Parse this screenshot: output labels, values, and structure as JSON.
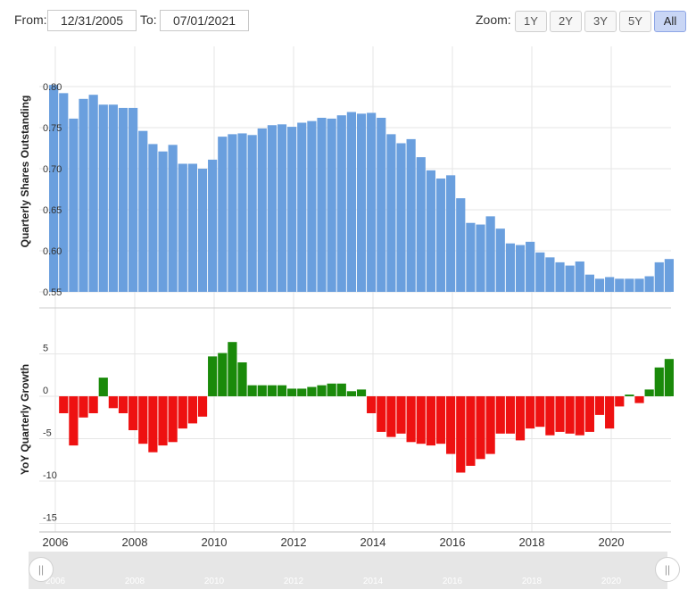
{
  "toolbar": {
    "from_label": "From:",
    "from_value": "12/31/2005",
    "to_label": "To:",
    "to_value": "07/01/2021",
    "zoom_label": "Zoom:",
    "zoom_options": [
      "1Y",
      "2Y",
      "3Y",
      "5Y",
      "All"
    ],
    "zoom_selected": "All"
  },
  "navigator": {
    "left_handle": "||",
    "right_handle": "||",
    "year_labels": [
      "2006",
      "2008",
      "2010",
      "2012",
      "2014",
      "2016",
      "2018",
      "2020"
    ]
  },
  "colors": {
    "shares_bar": "#6a9fde",
    "growth_positive": "#1a8a0a",
    "growth_negative": "#ee1111",
    "grid": "#e6e6e6"
  },
  "chart_data": [
    {
      "type": "bar",
      "ylabel": "Quarterly Shares Outstanding",
      "ylim": [
        0.55,
        0.8
      ],
      "yticks": [
        "0.80",
        "0.75",
        "0.70",
        "0.65",
        "0.60",
        "0.55"
      ],
      "ytick_values": [
        0.8,
        0.75,
        0.7,
        0.65,
        0.6,
        0.55
      ],
      "xticks": [
        "2006",
        "2008",
        "2010",
        "2012",
        "2014",
        "2016",
        "2018",
        "2020"
      ],
      "x_start": "2005-12-31",
      "x_end": "2021-07-01",
      "grid": true,
      "x": [
        "2005-12",
        "2006-03",
        "2006-06",
        "2006-09",
        "2006-12",
        "2007-03",
        "2007-06",
        "2007-09",
        "2007-12",
        "2008-03",
        "2008-06",
        "2008-09",
        "2008-12",
        "2009-03",
        "2009-06",
        "2009-09",
        "2009-12",
        "2010-03",
        "2010-06",
        "2010-09",
        "2010-12",
        "2011-03",
        "2011-06",
        "2011-09",
        "2011-12",
        "2012-03",
        "2012-06",
        "2012-09",
        "2012-12",
        "2013-03",
        "2013-06",
        "2013-09",
        "2013-12",
        "2014-03",
        "2014-06",
        "2014-09",
        "2014-12",
        "2015-03",
        "2015-06",
        "2015-09",
        "2015-12",
        "2016-03",
        "2016-06",
        "2016-09",
        "2016-12",
        "2017-03",
        "2017-06",
        "2017-09",
        "2017-12",
        "2018-03",
        "2018-06",
        "2018-09",
        "2018-12",
        "2019-03",
        "2019-06",
        "2019-09",
        "2019-12",
        "2020-03",
        "2020-06",
        "2020-09",
        "2020-12",
        "2021-03",
        "2021-06"
      ],
      "values": [
        0.802,
        0.792,
        0.761,
        0.785,
        0.79,
        0.778,
        0.778,
        0.774,
        0.774,
        0.746,
        0.73,
        0.721,
        0.729,
        0.706,
        0.706,
        0.7,
        0.711,
        0.739,
        0.742,
        0.743,
        0.741,
        0.749,
        0.753,
        0.754,
        0.751,
        0.756,
        0.758,
        0.762,
        0.761,
        0.765,
        0.769,
        0.767,
        0.768,
        0.762,
        0.742,
        0.731,
        0.736,
        0.714,
        0.698,
        0.688,
        0.692,
        0.664,
        0.634,
        0.632,
        0.642,
        0.627,
        0.609,
        0.607,
        0.611,
        0.598,
        0.592,
        0.586,
        0.582,
        0.587,
        0.571,
        0.566,
        0.568,
        0.566,
        0.566,
        0.566,
        0.569,
        0.586,
        0.59
      ]
    },
    {
      "type": "bar",
      "ylabel": "YoY Quarterly Growth",
      "ylim": [
        -15,
        7
      ],
      "yticks": [
        "5",
        "0",
        "-5",
        "-10",
        "-15"
      ],
      "ytick_values": [
        5,
        0,
        -5,
        -10,
        -15
      ],
      "grid": true,
      "x": [
        "2006-03",
        "2006-06",
        "2006-09",
        "2006-12",
        "2007-03",
        "2007-06",
        "2007-09",
        "2007-12",
        "2008-03",
        "2008-06",
        "2008-09",
        "2008-12",
        "2009-03",
        "2009-06",
        "2009-09",
        "2009-12",
        "2010-03",
        "2010-06",
        "2010-09",
        "2010-12",
        "2011-03",
        "2011-06",
        "2011-09",
        "2011-12",
        "2012-03",
        "2012-06",
        "2012-09",
        "2012-12",
        "2013-03",
        "2013-06",
        "2013-09",
        "2013-12",
        "2014-03",
        "2014-06",
        "2014-09",
        "2014-12",
        "2015-03",
        "2015-06",
        "2015-09",
        "2015-12",
        "2016-03",
        "2016-06",
        "2016-09",
        "2016-12",
        "2017-03",
        "2017-06",
        "2017-09",
        "2017-12",
        "2018-03",
        "2018-06",
        "2018-09",
        "2018-12",
        "2019-03",
        "2019-06",
        "2019-09",
        "2019-12",
        "2020-03",
        "2020-06",
        "2020-09",
        "2020-12",
        "2021-03",
        "2021-06"
      ],
      "values": [
        -2.0,
        -5.8,
        -2.5,
        -2.0,
        2.2,
        -1.4,
        -2.0,
        -4.0,
        -5.6,
        -6.6,
        -5.8,
        -5.4,
        -3.8,
        -3.2,
        -2.4,
        4.7,
        5.1,
        6.4,
        4.0,
        1.3,
        1.3,
        1.3,
        1.3,
        0.9,
        0.9,
        1.1,
        1.3,
        1.5,
        1.5,
        0.6,
        0.8,
        -2.0,
        -4.2,
        -4.8,
        -4.4,
        -5.4,
        -5.6,
        -5.8,
        -5.6,
        -6.8,
        -9.0,
        -8.2,
        -7.4,
        -6.8,
        -4.4,
        -4.4,
        -5.2,
        -3.8,
        -3.6,
        -4.6,
        -4.2,
        -4.4,
        -4.6,
        -4.2,
        -2.2,
        -3.8,
        -1.2,
        0.2,
        -0.8,
        0.8,
        3.4,
        4.4
      ]
    }
  ]
}
